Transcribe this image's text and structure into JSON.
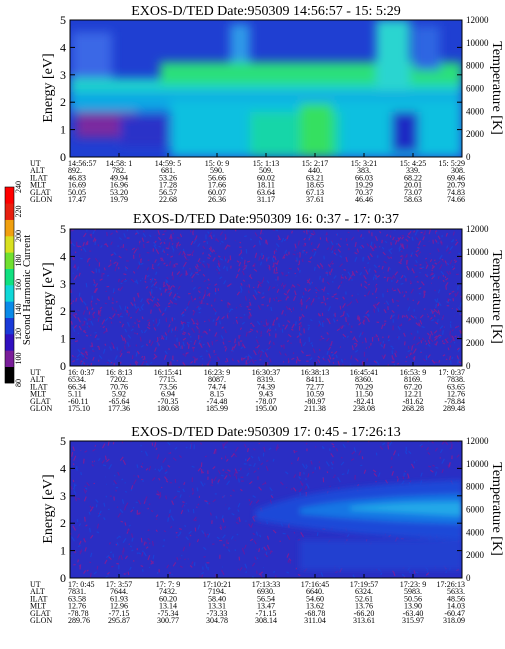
{
  "colorbar": {
    "title": "Second Harmonic Current",
    "ticks": [
      "80",
      "100",
      "120",
      "140",
      "160",
      "180",
      "200",
      "220",
      "240"
    ],
    "colors": [
      "#000000",
      "#7a1e9a",
      "#3010c0",
      "#1a3ad8",
      "#0a8ae8",
      "#10d8d8",
      "#10e080",
      "#70e030",
      "#d8e020",
      "#f0a010",
      "#e82010",
      "#ff0000"
    ]
  },
  "panels": [
    {
      "title": "EXOS-D/TED   Date:950309  14:56:57 - 15: 5:29",
      "ylabel": "Energy [eV]",
      "y2label": "Temperature [K]",
      "yticks": [
        "0",
        "1",
        "2",
        "3",
        "4",
        "5"
      ],
      "y2ticks": [
        "0",
        "2000",
        "4000",
        "6000",
        "8000",
        "10000",
        "12000"
      ],
      "row_labels": [
        "UT",
        "ALT",
        "ILAT",
        "MLT",
        "GLAT",
        "GLON"
      ],
      "columns": [
        [
          "14:56:57",
          "892.",
          "46.83",
          "16.69",
          "50.05",
          "17.47"
        ],
        [
          "14:58: 1",
          "782.",
          "49.94",
          "16.96",
          "53.20",
          "19.79"
        ],
        [
          "14:59: 5",
          "681.",
          "53.26",
          "17.28",
          "56.57",
          "22.68"
        ],
        [
          "15: 0: 9",
          "590.",
          "56.66",
          "17.66",
          "60.07",
          "26.36"
        ],
        [
          "15: 1:13",
          "509.",
          "60.02",
          "18.11",
          "63.64",
          "31.17"
        ],
        [
          "15: 2:17",
          "440.",
          "63.21",
          "18.65",
          "67.13",
          "37.61"
        ],
        [
          "15: 3:21",
          "383.",
          "66.03",
          "19.29",
          "70.37",
          "46.46"
        ],
        [
          "15: 4:25",
          "339.",
          "68.22",
          "20.01",
          "73.07",
          "58.63"
        ],
        [
          "15: 5:29",
          "308.",
          "69.46",
          "20.79",
          "74.83",
          "74.66"
        ]
      ]
    },
    {
      "title": "EXOS-D/TED   Date:950309  16: 0:37 - 17: 0:37",
      "ylabel": "Energy [eV]",
      "y2label": "Temperature [K]",
      "yticks": [
        "0",
        "1",
        "2",
        "3",
        "4",
        "5"
      ],
      "y2ticks": [
        "0",
        "2000",
        "4000",
        "6000",
        "8000",
        "10000",
        "12000"
      ],
      "row_labels": [
        "UT",
        "ALT",
        "ILAT",
        "MLT",
        "GLAT",
        "GLON"
      ],
      "columns": [
        [
          "16: 0:37",
          "6534.",
          "66.34",
          "5.11",
          "-60.11",
          "175.10"
        ],
        [
          "16: 8:13",
          "7202.",
          "70.76",
          "5.92",
          "-65.64",
          "177.36"
        ],
        [
          "16:15:41",
          "7715.",
          "73.56",
          "6.94",
          "-70.35",
          "180.68"
        ],
        [
          "16:23: 9",
          "8087.",
          "74.74",
          "8.15",
          "-74.48",
          "185.99"
        ],
        [
          "16:30:37",
          "8319.",
          "74.39",
          "9.43",
          "-78.07",
          "195.00"
        ],
        [
          "16:38:13",
          "8411.",
          "72.77",
          "10.59",
          "-80.97",
          "211.38"
        ],
        [
          "16:45:41",
          "8360.",
          "70.29",
          "11.50",
          "-82.41",
          "238.08"
        ],
        [
          "16:53: 9",
          "8169.",
          "67.20",
          "12.21",
          "-81.62",
          "268.28"
        ],
        [
          "17: 0:37",
          "7838.",
          "63.65",
          "12.76",
          "-78.84",
          "289.48"
        ]
      ]
    },
    {
      "title": "EXOS-D/TED   Date:950309  17: 0:45 - 17:26:13",
      "ylabel": "Energy [eV]",
      "y2label": "Temperature [K]",
      "yticks": [
        "0",
        "1",
        "2",
        "3",
        "4",
        "5"
      ],
      "y2ticks": [
        "0",
        "2000",
        "4000",
        "6000",
        "8000",
        "10000",
        "12000"
      ],
      "row_labels": [
        "UT",
        "ALT",
        "ILAT",
        "MLT",
        "GLAT",
        "GLON"
      ],
      "columns": [
        [
          "17: 0:45",
          "7831.",
          "63.58",
          "12.76",
          "-78.78",
          "289.76"
        ],
        [
          "17: 3:57",
          "7644.",
          "61.93",
          "12.96",
          "-77.15",
          "295.87"
        ],
        [
          "17: 7: 9",
          "7432.",
          "60.20",
          "13.14",
          "-75.34",
          "300.77"
        ],
        [
          "17:10:21",
          "7194.",
          "58.40",
          "13.31",
          "-73.33",
          "304.78"
        ],
        [
          "17:13:33",
          "6930.",
          "56.54",
          "13.47",
          "-71.15",
          "308.14"
        ],
        [
          "17:16:45",
          "6640.",
          "54.60",
          "13.62",
          "-68.78",
          "311.04"
        ],
        [
          "17:19:57",
          "6324.",
          "52.61",
          "13.76",
          "-66.20",
          "313.61"
        ],
        [
          "17:23: 9",
          "5983.",
          "50.56",
          "13.90",
          "-63.40",
          "315.97"
        ],
        [
          "17:26:13",
          "5633.",
          "48.56",
          "14.03",
          "-60.47",
          "318.09"
        ]
      ]
    }
  ],
  "chart_data": {
    "type": "heatmap",
    "panels": [
      {
        "title": "EXOS-D/TED   Date:950309  14:56:57 - 15: 5:29",
        "x": [
          "14:56:57",
          "14:58: 1",
          "14:59: 5",
          "15: 0: 9",
          "15: 1:13",
          "15: 2:17",
          "15: 3:21",
          "15: 4:25",
          "15: 5:29"
        ],
        "ylabel": "Energy [eV]",
        "ylim": [
          0,
          5
        ],
        "y2label": "Temperature [K]",
        "y2lim": [
          0,
          12000
        ],
        "colorbar_label": "Second Harmonic Current",
        "colorbar_range": [
          80,
          240
        ]
      },
      {
        "title": "EXOS-D/TED   Date:950309  16: 0:37 - 17: 0:37",
        "x": [
          "16: 0:37",
          "16: 8:13",
          "16:15:41",
          "16:23: 9",
          "16:30:37",
          "16:38:13",
          "16:45:41",
          "16:53: 9",
          "17: 0:37"
        ],
        "ylabel": "Energy [eV]",
        "ylim": [
          0,
          5
        ],
        "y2label": "Temperature [K]",
        "y2lim": [
          0,
          12000
        ]
      },
      {
        "title": "EXOS-D/TED   Date:950309  17: 0:45 - 17:26:13",
        "x": [
          "17: 0:45",
          "17: 3:57",
          "17: 7: 9",
          "17:10:21",
          "17:13:33",
          "17:16:45",
          "17:19:57",
          "17:23: 9",
          "17:26:13"
        ],
        "ylabel": "Energy [eV]",
        "ylim": [
          0,
          5
        ],
        "y2label": "Temperature [K]",
        "y2lim": [
          0,
          12000
        ]
      }
    ]
  }
}
